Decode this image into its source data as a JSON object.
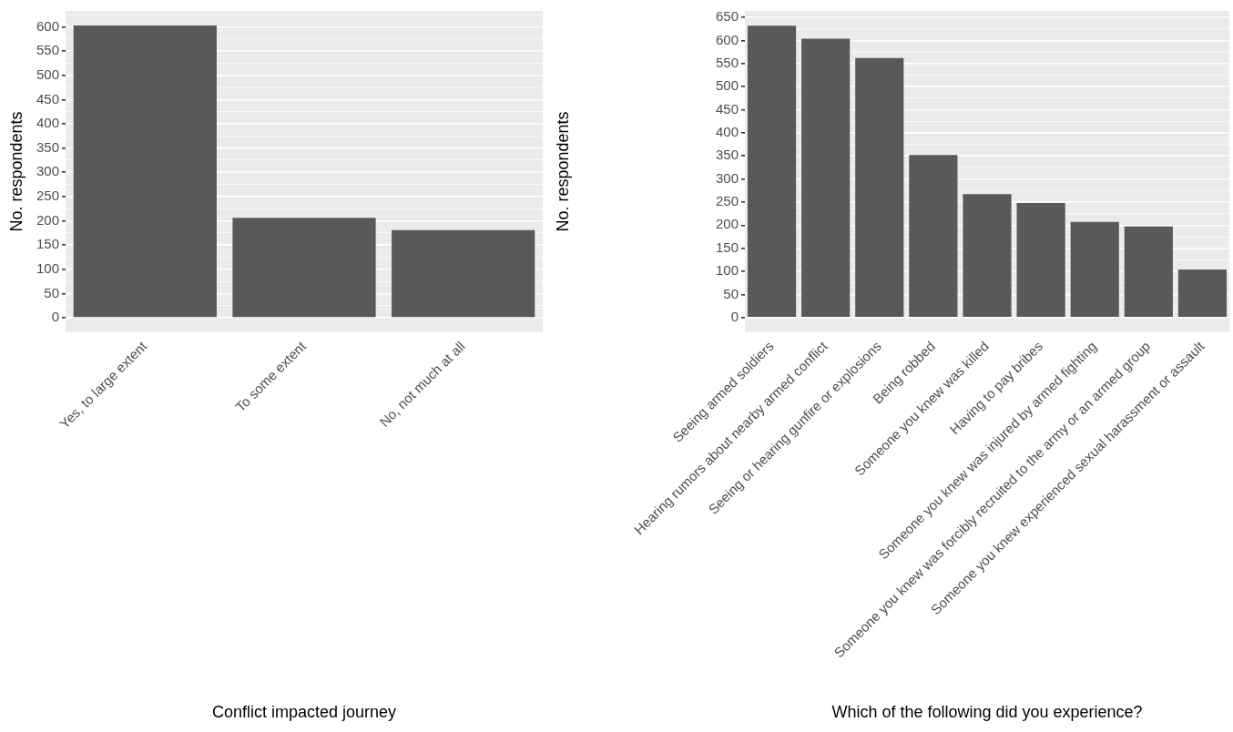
{
  "chart_data": [
    {
      "type": "bar",
      "xlabel": "Conflict impacted journey",
      "ylabel": "No. respondents",
      "categories": [
        "Yes, to large extent",
        "To some extent",
        "No, not much at all"
      ],
      "series": [
        {
          "color": "#595959",
          "values": [
            603,
            206,
            181
          ]
        }
      ],
      "ylim": [
        -30,
        633
      ],
      "yticks": [
        0,
        {
          "value": 25,
          "label": null
        },
        50,
        {
          "value": 75,
          "label": null
        },
        100,
        {
          "value": 125,
          "label": null
        },
        150,
        {
          "value": 175,
          "label": null
        },
        200,
        {
          "value": 225,
          "label": null
        },
        250,
        {
          "value": 275,
          "label": null
        },
        300,
        {
          "value": 325,
          "label": null
        },
        350,
        {
          "value": 375,
          "label": null
        },
        400,
        {
          "value": 425,
          "label": null
        },
        450,
        {
          "value": 475,
          "label": null
        },
        500,
        {
          "value": 525,
          "label": null
        },
        550,
        {
          "value": 575,
          "label": null
        },
        600,
        {
          "value": 625,
          "label": null
        }
      ],
      "grid": "y",
      "legend": false
    },
    {
      "type": "bar",
      "xlabel": "Which of the following did you experience?",
      "ylabel": "No. respondents",
      "categories": [
        "Seeing armed soldiers",
        "Hearing rumors about nearby armed conflict",
        "Seeing or hearing gunfire or explosions",
        "Being robbed",
        "Someone you knew was killed",
        "Having to pay bribes",
        "Someone you knew was injured by armed fighting",
        "Someone you knew was forcibly recruited to the army or an armed group",
        "Someone you knew experienced sexual harassment or assault"
      ],
      "series": [
        {
          "color": "#595959",
          "values": [
            632,
            604,
            562,
            352,
            267,
            248,
            207,
            197,
            104
          ]
        }
      ],
      "ylim": [
        -32,
        664
      ],
      "yticks": [
        0,
        {
          "value": 25,
          "label": null
        },
        50,
        {
          "value": 75,
          "label": null
        },
        100,
        {
          "value": 125,
          "label": null
        },
        150,
        {
          "value": 175,
          "label": null
        },
        200,
        {
          "value": 225,
          "label": null
        },
        250,
        {
          "value": 275,
          "label": null
        },
        300,
        {
          "value": 325,
          "label": null
        },
        350,
        {
          "value": 375,
          "label": null
        },
        400,
        {
          "value": 425,
          "label": null
        },
        450,
        {
          "value": 475,
          "label": null
        },
        500,
        {
          "value": 525,
          "label": null
        },
        550,
        {
          "value": 575,
          "label": null
        },
        600,
        {
          "value": 625,
          "label": null
        },
        650
      ],
      "grid": "y",
      "legend": false
    }
  ]
}
